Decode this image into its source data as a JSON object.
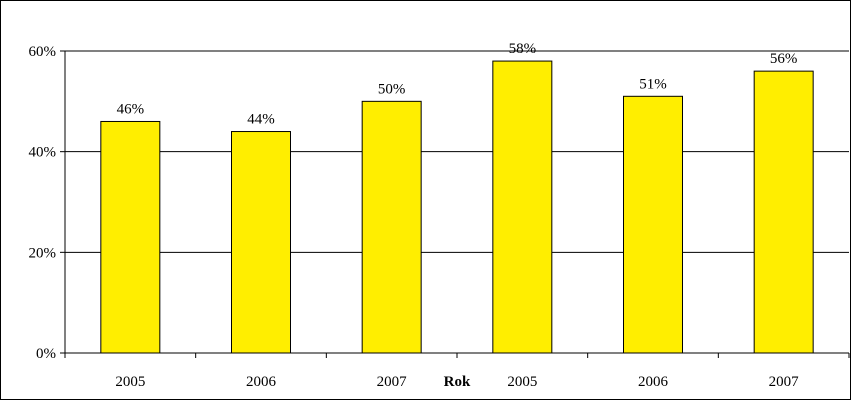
{
  "chart_data": {
    "type": "bar",
    "categories": [
      "2005",
      "2006",
      "2007",
      "2005",
      "2006",
      "2007"
    ],
    "values": [
      46,
      44,
      50,
      58,
      51,
      56
    ],
    "data_labels": [
      "46%",
      "44%",
      "50%",
      "58%",
      "51%",
      "56%"
    ],
    "title": "",
    "xlabel": "Rok",
    "ylabel": "",
    "ylim": [
      0,
      60
    ],
    "yticks": [
      0,
      20,
      40,
      60
    ],
    "ytick_labels": [
      "0%",
      "20%",
      "40%",
      "60%"
    ],
    "grid": true,
    "legend": "none",
    "colors": {
      "bar_fill": "#FFEE00",
      "bar_stroke": "#000000",
      "grid": "#000000"
    }
  }
}
